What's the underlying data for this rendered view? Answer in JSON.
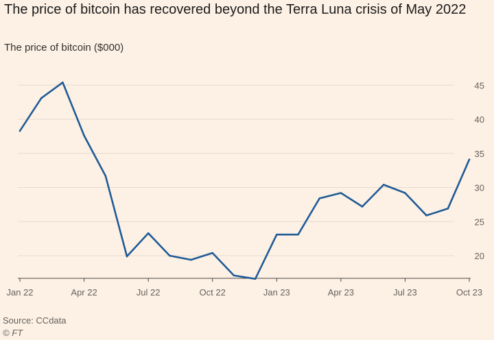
{
  "header": {
    "title": "The price of bitcoin has recovered beyond the Terra Luna crisis of May 2022",
    "subtitle": "The price of bitcoin ($000)"
  },
  "footer": {
    "source": "Source: CCdata",
    "copyright": "© FT"
  },
  "colors": {
    "background": "#fdf1e5",
    "line": "#1f5a96",
    "grid": "#e6d9ce",
    "axis": "#66605c"
  },
  "chart_data": {
    "type": "line",
    "x_tick_labels": [
      "Jan 22",
      "Apr 22",
      "Jul 22",
      "Oct 22",
      "Jan 23",
      "Apr 23",
      "Jul 23",
      "Oct 23"
    ],
    "y_tick_labels": [
      "20",
      "25",
      "30",
      "35",
      "40",
      "45"
    ],
    "y_ticks": [
      20,
      25,
      30,
      35,
      40,
      45
    ],
    "ylim": [
      16,
      47
    ],
    "y_axis_position": "right",
    "grid": "horizontal",
    "series": [
      {
        "x": [
          "2022-01",
          "2022-02",
          "2022-03",
          "2022-04",
          "2022-05",
          "2022-06",
          "2022-07",
          "2022-08",
          "2022-09",
          "2022-10",
          "2022-11",
          "2022-12",
          "2023-01",
          "2023-02",
          "2023-03",
          "2023-04",
          "2023-05",
          "2023-06",
          "2023-07",
          "2023-08",
          "2023-09",
          "2023-10"
        ],
        "values": [
          38.3,
          43.1,
          45.4,
          37.6,
          31.7,
          19.9,
          23.3,
          20.0,
          19.4,
          20.4,
          17.1,
          16.6,
          23.1,
          23.1,
          28.4,
          29.2,
          27.2,
          30.4,
          29.2,
          25.9,
          26.9,
          34.1
        ]
      }
    ]
  }
}
